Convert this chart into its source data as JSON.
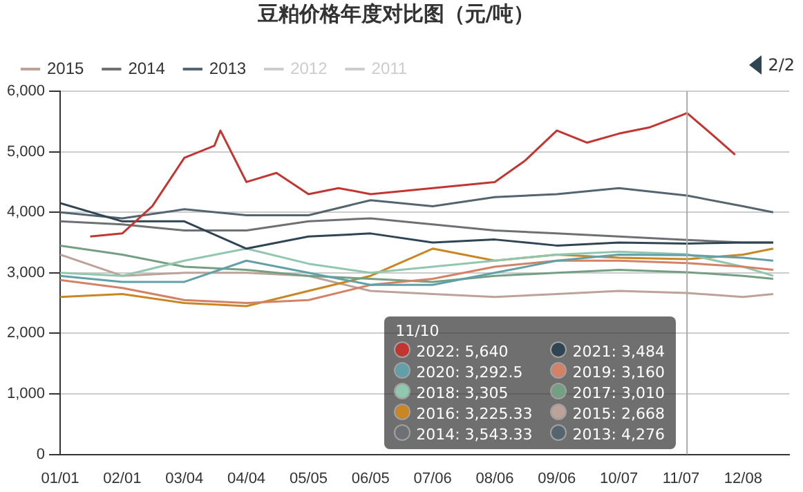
{
  "chart_data": {
    "type": "line",
    "title": "豆粕价格年度对比图（元/吨）",
    "x": [
      "--01-01",
      "--02-01",
      "--03-04",
      "--04-04",
      "--05-05",
      "--06-05",
      "--07-06",
      "--08-06",
      "--09-06",
      "--10-07",
      "--11-10",
      "--12-08",
      "--12-23"
    ],
    "xlim": [
      "--01-01",
      "--12-31"
    ],
    "xticks": [
      {
        "value": "--01-01",
        "label": "01/01"
      },
      {
        "value": "--02-01",
        "label": "02/01"
      },
      {
        "value": "--03-04",
        "label": "03/04"
      },
      {
        "value": "--04-04",
        "label": "04/04"
      },
      {
        "value": "--05-05",
        "label": "05/05"
      },
      {
        "value": "--06-05",
        "label": "06/05"
      },
      {
        "value": "--07-06",
        "label": "07/06"
      },
      {
        "value": "--08-06",
        "label": "08/06"
      },
      {
        "value": "--09-06",
        "label": "09/06"
      },
      {
        "value": "--10-07",
        "label": "10/07"
      },
      {
        "value": "--11-07",
        "label": "11/07"
      },
      {
        "value": "--12-08",
        "label": "12/08"
      }
    ],
    "ylim": [
      0,
      6000
    ],
    "yticks": [
      {
        "value": 0,
        "label": "0"
      },
      {
        "value": 1000,
        "label": "1,000"
      },
      {
        "value": 2000,
        "label": "2,000"
      },
      {
        "value": 3000,
        "label": "3,000"
      },
      {
        "value": 4000,
        "label": "4,000"
      },
      {
        "value": 5000,
        "label": "5,000"
      },
      {
        "value": 6000,
        "label": "6,000"
      }
    ],
    "grid": "y",
    "legend": "top left",
    "marker": "none",
    "line_style": "solid",
    "series": [
      {
        "name": "2022",
        "color": "#c23531",
        "x": [
          "--01-16",
          "--02-01",
          "--02-16",
          "--03-04",
          "--03-19",
          "--03-22",
          "--04-04",
          "--04-19",
          "--05-05",
          "--05-20",
          "--06-05",
          "--07-06",
          "--08-06",
          "--08-21",
          "--09-06",
          "--09-21",
          "--10-07",
          "--10-22",
          "--11-07",
          "--11-10",
          "--11-22",
          "--12-04"
        ],
        "values": [
          3600,
          3650,
          4100,
          4900,
          5100,
          5350,
          4500,
          4650,
          4300,
          4400,
          4300,
          4400,
          4500,
          4850,
          5350,
          5150,
          5300,
          5400,
          5600,
          5640,
          5300,
          4950
        ]
      },
      {
        "name": "2021",
        "color": "#2f4554",
        "values": [
          4150,
          3850,
          3850,
          3400,
          3600,
          3650,
          3500,
          3550,
          3450,
          3500,
          3484,
          3500,
          3500
        ]
      },
      {
        "name": "2020",
        "color": "#61a0a8",
        "values": [
          2950,
          2850,
          2850,
          3200,
          3000,
          2800,
          2800,
          3000,
          3200,
          3300,
          3292.5,
          3250,
          3200
        ]
      },
      {
        "name": "2019",
        "color": "#d48265",
        "values": [
          2880,
          2750,
          2550,
          2500,
          2550,
          2800,
          2900,
          3100,
          3200,
          3200,
          3160,
          3100,
          3050
        ]
      },
      {
        "name": "2018",
        "color": "#91c7ae",
        "values": [
          3000,
          2950,
          3200,
          3400,
          3150,
          3000,
          3100,
          3200,
          3300,
          3350,
          3305,
          3100,
          2950
        ]
      },
      {
        "name": "2017",
        "color": "#749f83",
        "values": [
          3450,
          3300,
          3100,
          3050,
          2950,
          2900,
          2850,
          2950,
          3000,
          3050,
          3010,
          2950,
          2900
        ]
      },
      {
        "name": "2016",
        "color": "#ca8622",
        "values": [
          2600,
          2650,
          2500,
          2450,
          2700,
          2950,
          3400,
          3200,
          3300,
          3250,
          3225.33,
          3300,
          3400
        ]
      },
      {
        "name": "2015",
        "color": "#bda29a",
        "values": [
          3300,
          2950,
          3000,
          3000,
          2950,
          2700,
          2650,
          2600,
          2650,
          2700,
          2668,
          2600,
          2650
        ]
      },
      {
        "name": "2014",
        "color": "#6e7074",
        "values": [
          3850,
          3800,
          3700,
          3700,
          3850,
          3900,
          3800,
          3700,
          3650,
          3600,
          3543.33,
          3500,
          3500
        ]
      },
      {
        "name": "2013",
        "color": "#546570",
        "values": [
          4000,
          3900,
          4050,
          3950,
          3950,
          4200,
          4100,
          4250,
          4300,
          4400,
          4276,
          4100,
          4000
        ]
      },
      {
        "name": "2012",
        "color": "#cccccc",
        "values": [
          null,
          null,
          null,
          null,
          null,
          null,
          null,
          null,
          null,
          null,
          null,
          null,
          null
        ]
      },
      {
        "name": "2011",
        "color": "#cccccc",
        "values": [
          null,
          null,
          null,
          null,
          null,
          null,
          null,
          null,
          null,
          null,
          null,
          null,
          null
        ]
      }
    ],
    "ref_lines": [
      {
        "axis": "x",
        "value": "--11-10",
        "color": "#aaaaaa"
      }
    ],
    "annotations": [
      "11/10",
      ": 5,640",
      ": 3,484",
      ": 3,292.5",
      ": 3,160",
      ": 3,305",
      ": 3,010",
      ": 3,225.33",
      ": 2,668",
      ": 3,543.33",
      ": 4,276",
      "2/2"
    ]
  }
}
